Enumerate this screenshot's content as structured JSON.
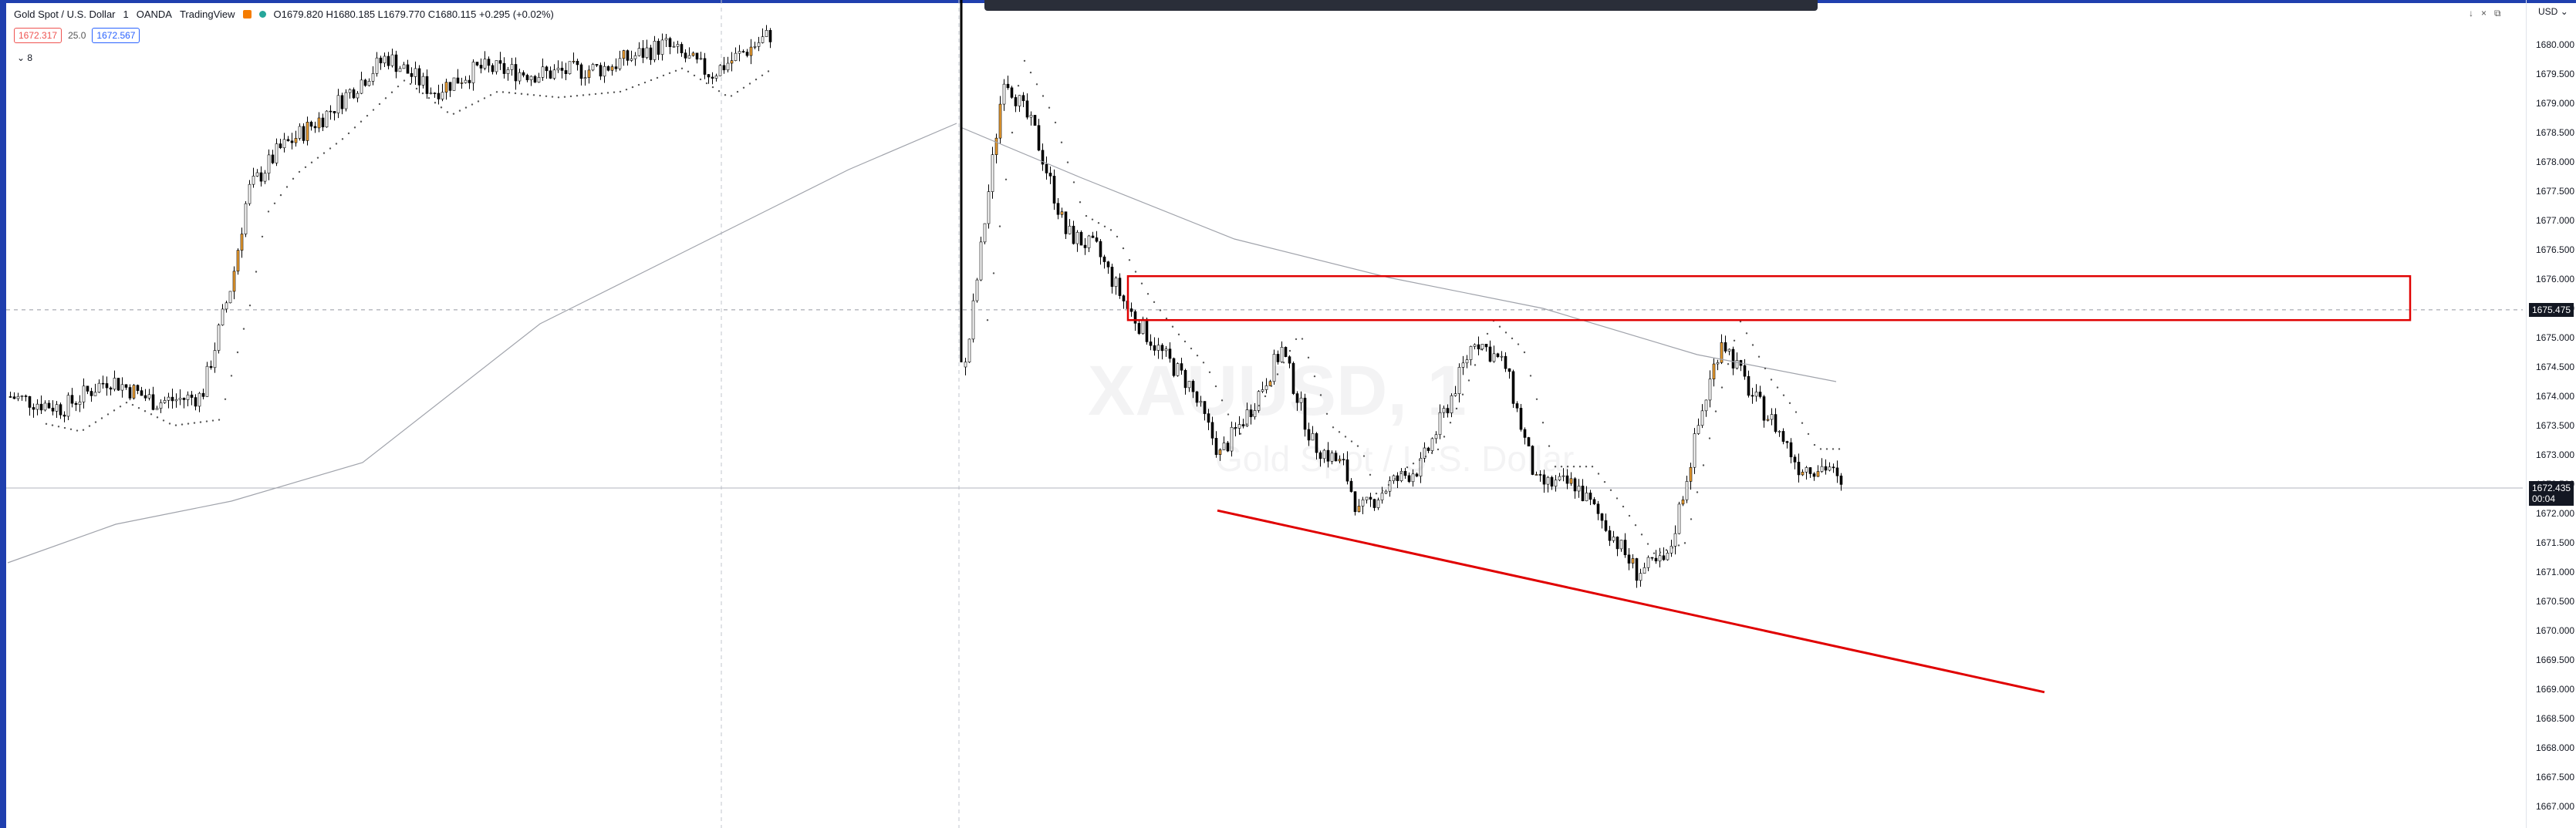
{
  "legend": {
    "symbol": "Gold Spot / U.S. Dollar",
    "interval": "1",
    "broker": "OANDA",
    "platform": "TradingView",
    "ohlc": "O1679.820 H1680.185 L1679.770 C1680.115 +0.295 (+0.02%)"
  },
  "prices": {
    "sell": "1672.317",
    "spread": "25.0",
    "buy": "1672.567"
  },
  "indicator_toggle": "8",
  "watermark": {
    "ticker": "XAUUSD, 1",
    "name": "Gold Spot / U.S. Dollar"
  },
  "axis": {
    "currency": "USD",
    "ticks": [
      "1680.000",
      "1679.500",
      "1679.000",
      "1678.500",
      "1678.000",
      "1677.500",
      "1677.000",
      "1676.500",
      "1676.000",
      "1675.500",
      "1675.000",
      "1674.500",
      "1674.000",
      "1673.500",
      "1673.000",
      "1672.500",
      "1672.000",
      "1671.500",
      "1671.000",
      "1670.500",
      "1670.000",
      "1669.500",
      "1669.000",
      "1668.500",
      "1668.000",
      "1667.500",
      "1667.000"
    ],
    "crosshair_price": "1675.475",
    "last_price": "1672.435",
    "countdown": "00:04"
  },
  "colors": {
    "rectangle": "#ff0000",
    "trendline": "#e00000",
    "frame": "#1f3fae"
  }
}
